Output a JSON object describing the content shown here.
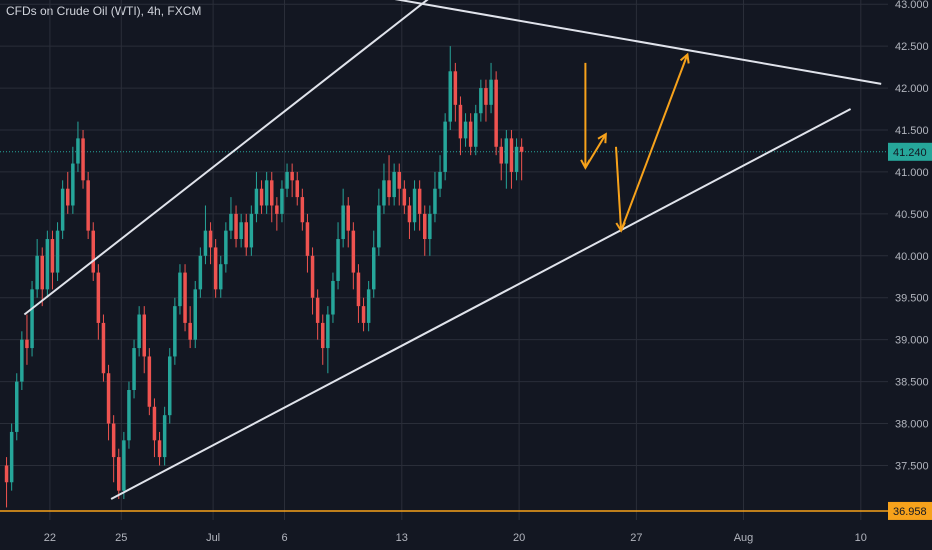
{
  "header": {
    "title": "CFDs on Crude Oil (WTI), 4h, FXCM"
  },
  "colors": {
    "background": "#131722",
    "grid": "#2a2e39",
    "up": "#26a69a",
    "down": "#ef5350",
    "channel": "#e0e3eb",
    "arrow": "#f7a21b",
    "current_price": "#26a69a",
    "support": "#f7a21b"
  },
  "chart_data": {
    "type": "candlestick",
    "symbol": "CFDs on Crude Oil (WTI)",
    "timeframe": "4h",
    "exchange": "FXCM",
    "ylim": [
      36.85,
      43.05
    ],
    "y_ticks": [
      "43.000",
      "42.500",
      "42.000",
      "41.500",
      "41.000",
      "40.500",
      "40.000",
      "39.500",
      "39.000",
      "38.500",
      "38.000",
      "37.500"
    ],
    "x_ticks": [
      "22",
      "25",
      "Jul",
      "6",
      "13",
      "20",
      "27",
      "Aug",
      "10"
    ],
    "current_price": {
      "label": "41.240",
      "value": 41.24
    },
    "support_level": {
      "label": "36.958",
      "value": 36.958
    },
    "candles": [
      [
        37.5,
        37.3,
        37.6,
        37.0
      ],
      [
        37.3,
        37.9,
        38.0,
        37.2
      ],
      [
        37.9,
        38.5,
        38.6,
        37.8
      ],
      [
        38.5,
        39.0,
        39.1,
        38.4
      ],
      [
        39.0,
        38.9,
        39.3,
        38.7
      ],
      [
        38.9,
        39.6,
        39.7,
        38.8
      ],
      [
        39.6,
        40.0,
        40.2,
        39.5
      ],
      [
        40.0,
        39.6,
        40.1,
        39.4
      ],
      [
        39.6,
        40.2,
        40.3,
        39.5
      ],
      [
        40.2,
        39.8,
        40.3,
        39.6
      ],
      [
        39.8,
        40.3,
        40.4,
        39.7
      ],
      [
        40.3,
        40.8,
        40.9,
        40.2
      ],
      [
        40.8,
        40.6,
        41.0,
        40.5
      ],
      [
        40.6,
        41.1,
        41.3,
        40.5
      ],
      [
        41.1,
        41.4,
        41.6,
        41.0
      ],
      [
        41.4,
        40.9,
        41.5,
        40.8
      ],
      [
        40.9,
        40.3,
        41.0,
        40.2
      ],
      [
        40.3,
        39.8,
        40.4,
        39.7
      ],
      [
        39.8,
        39.2,
        39.9,
        39.0
      ],
      [
        39.2,
        38.6,
        39.3,
        38.5
      ],
      [
        38.6,
        38.0,
        38.7,
        37.8
      ],
      [
        38.0,
        37.6,
        38.1,
        37.3
      ],
      [
        37.6,
        37.2,
        37.7,
        37.1
      ],
      [
        37.2,
        37.8,
        37.9,
        37.1
      ],
      [
        37.8,
        38.4,
        38.5,
        37.7
      ],
      [
        38.4,
        38.9,
        39.0,
        38.3
      ],
      [
        38.9,
        39.3,
        39.4,
        38.8
      ],
      [
        39.3,
        38.8,
        39.4,
        38.6
      ],
      [
        38.8,
        38.2,
        38.9,
        38.1
      ],
      [
        38.2,
        37.8,
        38.3,
        37.6
      ],
      [
        37.8,
        37.6,
        37.9,
        37.5
      ],
      [
        37.6,
        38.1,
        38.2,
        37.5
      ],
      [
        38.1,
        38.8,
        38.9,
        38.0
      ],
      [
        38.8,
        39.4,
        39.5,
        38.7
      ],
      [
        39.4,
        39.8,
        39.9,
        39.3
      ],
      [
        39.8,
        39.2,
        39.9,
        39.1
      ],
      [
        39.2,
        39.0,
        39.4,
        38.9
      ],
      [
        39.0,
        39.6,
        39.7,
        38.9
      ],
      [
        39.6,
        40.0,
        40.1,
        39.5
      ],
      [
        40.0,
        40.3,
        40.6,
        39.9
      ],
      [
        40.3,
        40.1,
        40.4,
        39.9
      ],
      [
        40.1,
        39.6,
        40.2,
        39.5
      ],
      [
        39.6,
        39.9,
        40.0,
        39.5
      ],
      [
        39.9,
        40.3,
        40.4,
        39.8
      ],
      [
        40.3,
        40.5,
        40.7,
        40.2
      ],
      [
        40.5,
        40.2,
        40.6,
        40.1
      ],
      [
        40.2,
        40.4,
        40.5,
        40.1
      ],
      [
        40.4,
        40.1,
        40.5,
        40.0
      ],
      [
        40.1,
        40.5,
        40.6,
        40.0
      ],
      [
        40.5,
        40.8,
        41.0,
        40.4
      ],
      [
        40.8,
        40.6,
        40.9,
        40.5
      ],
      [
        40.6,
        40.9,
        41.0,
        40.5
      ],
      [
        40.9,
        40.6,
        41.0,
        40.4
      ],
      [
        40.6,
        40.5,
        40.7,
        40.3
      ],
      [
        40.5,
        40.8,
        40.9,
        40.4
      ],
      [
        40.8,
        41.0,
        41.1,
        40.7
      ],
      [
        41.0,
        40.9,
        41.1,
        40.7
      ],
      [
        40.9,
        40.7,
        41.0,
        40.6
      ],
      [
        40.7,
        40.4,
        40.8,
        40.3
      ],
      [
        40.4,
        40.0,
        40.5,
        39.8
      ],
      [
        40.0,
        39.5,
        40.1,
        39.3
      ],
      [
        39.5,
        39.2,
        39.6,
        39.0
      ],
      [
        39.2,
        38.9,
        39.3,
        38.7
      ],
      [
        38.9,
        39.3,
        39.4,
        38.6
      ],
      [
        39.3,
        39.7,
        39.8,
        39.2
      ],
      [
        39.7,
        40.2,
        40.4,
        39.6
      ],
      [
        40.2,
        40.6,
        40.8,
        40.1
      ],
      [
        40.6,
        40.3,
        40.7,
        40.1
      ],
      [
        40.3,
        39.8,
        40.4,
        39.6
      ],
      [
        39.8,
        39.4,
        39.9,
        39.2
      ],
      [
        39.4,
        39.2,
        39.5,
        39.1
      ],
      [
        39.2,
        39.6,
        39.7,
        39.1
      ],
      [
        39.6,
        40.1,
        40.3,
        39.5
      ],
      [
        40.1,
        40.6,
        40.8,
        40.0
      ],
      [
        40.6,
        40.9,
        41.1,
        40.5
      ],
      [
        40.9,
        40.7,
        41.2,
        40.6
      ],
      [
        40.7,
        41.0,
        41.1,
        40.6
      ],
      [
        41.0,
        40.8,
        41.1,
        40.6
      ],
      [
        40.8,
        40.6,
        40.9,
        40.5
      ],
      [
        40.6,
        40.4,
        40.7,
        40.2
      ],
      [
        40.4,
        40.8,
        40.9,
        40.3
      ],
      [
        40.8,
        40.5,
        40.9,
        40.3
      ],
      [
        40.5,
        40.2,
        40.6,
        40.0
      ],
      [
        40.2,
        40.5,
        40.6,
        40.0
      ],
      [
        40.5,
        40.8,
        41.0,
        40.4
      ],
      [
        40.8,
        41.0,
        41.2,
        40.7
      ],
      [
        41.0,
        41.6,
        41.7,
        40.9
      ],
      [
        41.6,
        42.2,
        42.5,
        41.5
      ],
      [
        42.2,
        41.8,
        42.3,
        41.6
      ],
      [
        41.8,
        41.4,
        41.9,
        41.2
      ],
      [
        41.4,
        41.6,
        41.7,
        41.3
      ],
      [
        41.6,
        41.3,
        41.7,
        41.2
      ],
      [
        41.3,
        41.7,
        41.8,
        41.2
      ],
      [
        41.7,
        42.0,
        42.1,
        41.6
      ],
      [
        42.0,
        41.8,
        42.1,
        41.6
      ],
      [
        41.8,
        42.1,
        42.3,
        41.7
      ],
      [
        42.1,
        41.3,
        42.2,
        41.2
      ],
      [
        41.3,
        41.1,
        41.4,
        40.9
      ],
      [
        41.1,
        41.4,
        41.5,
        40.8
      ],
      [
        41.4,
        41.0,
        41.5,
        40.8
      ],
      [
        41.0,
        41.3,
        41.4,
        40.9
      ],
      [
        41.3,
        41.24,
        41.4,
        40.9
      ]
    ],
    "channel_lines": [
      {
        "name": "upper",
        "from": [
          4,
          39.3
        ],
        "to": [
          84,
          43.1
        ]
      },
      {
        "name": "lower",
        "from": [
          21,
          37.1
        ],
        "to": [
          166,
          41.75
        ]
      },
      {
        "name": "resistance",
        "from": [
          73,
          43.1
        ],
        "to": [
          172,
          42.05
        ]
      }
    ],
    "projection_arrows": [
      {
        "from": [
          114,
          42.3
        ],
        "to": [
          114,
          41.05
        ]
      },
      {
        "from": [
          114,
          41.05
        ],
        "to": [
          118,
          41.45
        ]
      },
      {
        "from": [
          120,
          41.3
        ],
        "to": [
          121,
          40.3
        ]
      },
      {
        "from": [
          121,
          40.3
        ],
        "to": [
          134,
          42.4
        ]
      }
    ]
  }
}
